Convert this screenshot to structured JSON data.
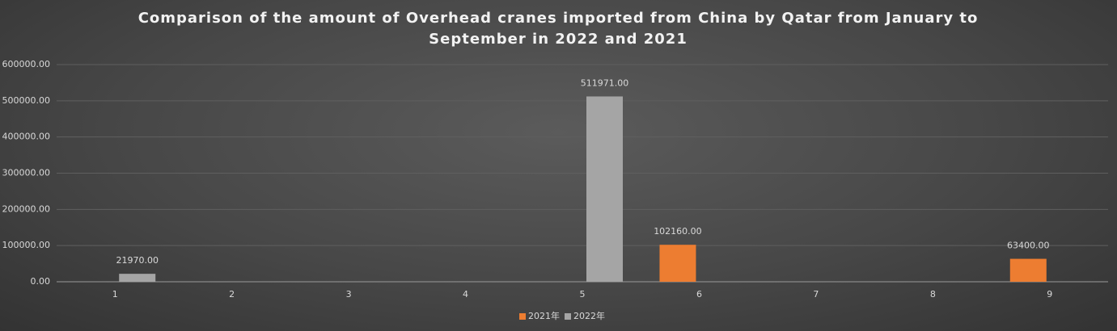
{
  "chart_data": {
    "type": "bar",
    "title": "Comparison of the amount of Overhead cranes imported from China by Qatar from January to September in 2022 and 2021",
    "categories": [
      "1",
      "2",
      "3",
      "4",
      "5",
      "6",
      "7",
      "8",
      "9"
    ],
    "series": [
      {
        "name": "2021年",
        "color": "#ed7d31",
        "values": [
          null,
          null,
          null,
          null,
          null,
          102160,
          null,
          null,
          63400
        ],
        "value_labels": [
          null,
          null,
          null,
          null,
          null,
          "102160.00",
          null,
          null,
          "63400.00"
        ]
      },
      {
        "name": "2022年",
        "color": "#a5a5a5",
        "values": [
          21970,
          null,
          null,
          null,
          511971,
          null,
          null,
          null,
          null
        ],
        "value_labels": [
          "21970.00",
          null,
          null,
          null,
          "511971.00",
          null,
          null,
          null,
          null
        ]
      }
    ],
    "ylim": [
      0,
      600000
    ],
    "yticks": [
      {
        "value": 0,
        "label": "0.00"
      },
      {
        "value": 100000,
        "label": "100000.00"
      },
      {
        "value": 200000,
        "label": "200000.00"
      },
      {
        "value": 300000,
        "label": "300000.00"
      },
      {
        "value": 400000,
        "label": "400000.00"
      },
      {
        "value": 500000,
        "label": "500000.00"
      },
      {
        "value": 600000,
        "label": "600000.00"
      }
    ],
    "grid": true,
    "legend": "bottom"
  }
}
